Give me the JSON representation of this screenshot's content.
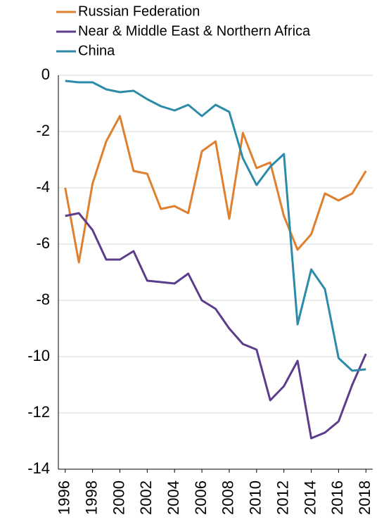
{
  "chart_data": {
    "type": "line",
    "x": [
      1996,
      1997,
      1998,
      1999,
      2000,
      2001,
      2002,
      2003,
      2004,
      2005,
      2006,
      2007,
      2008,
      2009,
      2010,
      2011,
      2012,
      2013,
      2014,
      2015,
      2016,
      2017,
      2018
    ],
    "series": [
      {
        "name": "Russian Federation",
        "color": "#e0802f",
        "values": [
          -4.0,
          -6.65,
          -3.85,
          -2.35,
          -1.45,
          -3.4,
          -3.5,
          -4.75,
          -4.65,
          -4.9,
          -2.7,
          -2.35,
          -5.1,
          -2.05,
          -3.3,
          -3.1,
          -5.0,
          -6.2,
          -5.65,
          -4.2,
          -4.45,
          -4.2,
          -3.4
        ]
      },
      {
        "name": "Near & Middle East & Northern Africa",
        "color": "#5c3d8c",
        "values": [
          -5.0,
          -4.9,
          -5.5,
          -6.55,
          -6.55,
          -6.25,
          -7.3,
          -7.35,
          -7.4,
          -7.05,
          -8.0,
          -8.3,
          -9.0,
          -9.55,
          -9.75,
          -11.55,
          -11.05,
          -10.15,
          -12.9,
          -12.7,
          -12.3,
          -11.0,
          -9.9
        ]
      },
      {
        "name": "China",
        "color": "#2b8ba8",
        "values": [
          -0.2,
          -0.25,
          -0.25,
          -0.5,
          -0.6,
          -0.55,
          -0.85,
          -1.1,
          -1.25,
          -1.05,
          -1.45,
          -1.05,
          -1.3,
          -2.95,
          -3.9,
          -3.25,
          -2.8,
          -8.85,
          -6.9,
          -7.6,
          -10.05,
          -10.5,
          -10.45
        ]
      }
    ],
    "xlim": [
      1995.5,
      2018.5
    ],
    "xticks": [
      1996,
      1998,
      2000,
      2002,
      2004,
      2006,
      2008,
      2010,
      2012,
      2014,
      2016,
      2018
    ],
    "ylim": [
      -14,
      0
    ],
    "yticks": [
      -14,
      -12,
      -10,
      -8,
      -6,
      -4,
      -2,
      0
    ],
    "grid": true,
    "legend": "top-left"
  }
}
